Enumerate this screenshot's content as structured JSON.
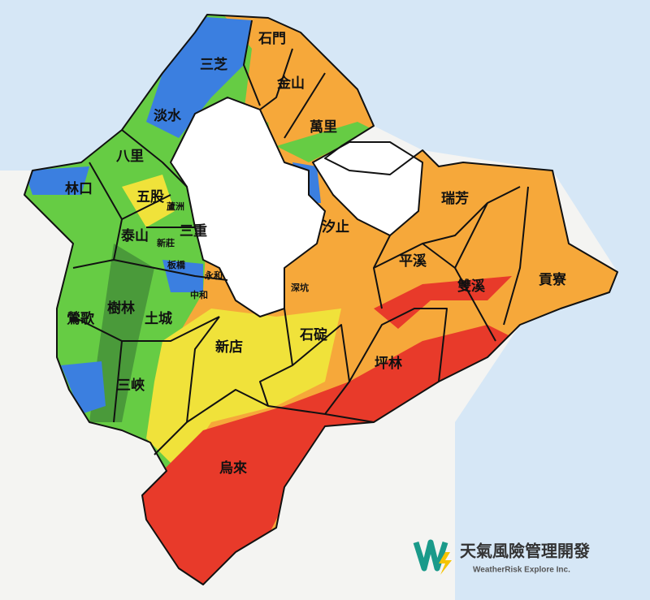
{
  "districts": [
    "石門",
    "三芝",
    "金山",
    "淡水",
    "萬里",
    "八里",
    "林口",
    "五股",
    "蘆洲",
    "三重",
    "瑞芳",
    "汐止",
    "泰山",
    "新莊",
    "板橋",
    "永和",
    "中和",
    "平溪",
    "雙溪",
    "貢寮",
    "深坑",
    "鶯歌",
    "樹林",
    "土城",
    "新店",
    "石碇",
    "坪林",
    "三峽",
    "烏來"
  ],
  "logo": {
    "name": "天氣風險管理開發",
    "subtitle": "WeatherRisk Explore Inc."
  }
}
